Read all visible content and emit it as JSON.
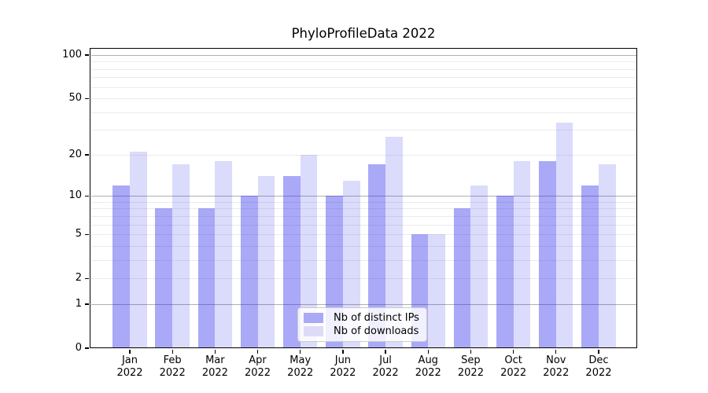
{
  "title": "PhyloProfileData 2022",
  "chart_data": {
    "type": "bar",
    "title": "PhyloProfileData 2022",
    "categories": [
      "Jan",
      "Feb",
      "Mar",
      "Apr",
      "May",
      "Jun",
      "Jul",
      "Aug",
      "Sep",
      "Oct",
      "Nov",
      "Dec"
    ],
    "year_label": "2022",
    "series": [
      {
        "name": "Nb of distinct IPs",
        "color": "#a9a9f4",
        "fill": "rgba(30,30,235,0.38)",
        "values": [
          12,
          8,
          8,
          10,
          14,
          10,
          17,
          5,
          8,
          10,
          18,
          12
        ]
      },
      {
        "name": "Nb of downloads",
        "color": "#dcdcf8",
        "fill": "rgba(30,30,235,0.16)",
        "values": [
          21,
          17,
          18,
          14,
          20,
          13,
          27,
          5,
          12,
          18,
          34,
          17
        ]
      }
    ],
    "yscale": "log1p",
    "ylabel": "",
    "xlabel": "",
    "y_axis": {
      "tick_values": [
        0,
        1,
        2,
        5,
        10,
        20,
        50,
        100
      ],
      "major_gridlines": [
        1,
        10,
        100
      ],
      "minor_gridlines": [
        2,
        3,
        4,
        5,
        6,
        7,
        8,
        9,
        20,
        30,
        40,
        50,
        60,
        70,
        80,
        90
      ],
      "range_max_value": 113
    },
    "legend_position": "lower center",
    "grid": true
  },
  "colors": {
    "background": "#ffffff",
    "text": "#000000",
    "spine": "#000000",
    "major_grid": "#b0b0b0",
    "minor_grid": "#ebebeb",
    "legend_border": "#cccccc"
  }
}
